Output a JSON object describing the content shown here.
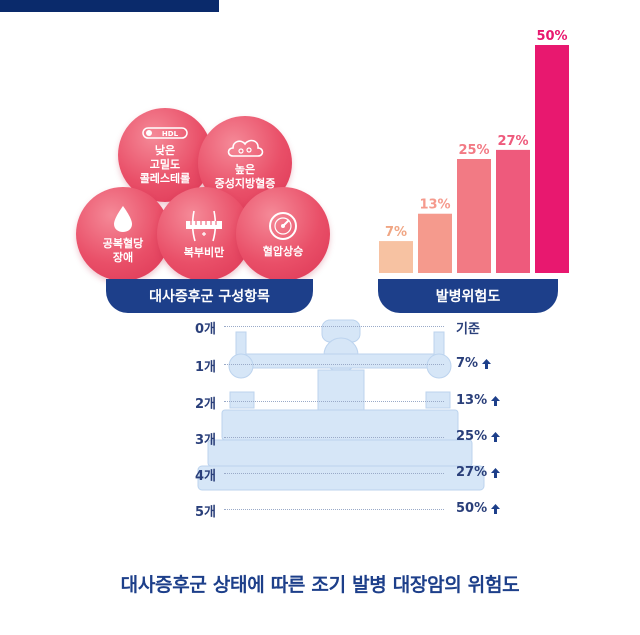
{
  "components": {
    "title": "대사증후군 구성항목",
    "items": [
      {
        "label": "낮은\n고밀도\n콜레스테롤",
        "icon": "thermometer-icon",
        "tag": "HDL"
      },
      {
        "label": "높은\n중성지방혈증",
        "icon": "fat-cloud-icon"
      },
      {
        "label": "공복혈당\n장애",
        "icon": "blood-drop-icon"
      },
      {
        "label": "복부비만",
        "icon": "waist-tape-icon"
      },
      {
        "label": "혈압상승",
        "icon": "pressure-gauge-icon"
      }
    ]
  },
  "risk_panel": {
    "title": "발병위험도"
  },
  "colors": {
    "navy": "#1d3f8a",
    "circle": "#e94f68",
    "bars": [
      "#f7c2a2",
      "#f59a8d",
      "#f27a84",
      "#ee5a7c",
      "#e8186f"
    ]
  },
  "chart_data": {
    "type": "bar",
    "categories": [
      "1개",
      "2개",
      "3개",
      "4개",
      "5개"
    ],
    "values": [
      7,
      13,
      25,
      27,
      50
    ],
    "value_labels": [
      "7%",
      "13%",
      "25%",
      "27%",
      "50%"
    ],
    "ylim": [
      0,
      50
    ],
    "grid": false
  },
  "scale_rows": [
    {
      "count": "0개",
      "risk": "기준",
      "arrow": false
    },
    {
      "count": "1개",
      "risk": "7%",
      "arrow": true
    },
    {
      "count": "2개",
      "risk": "13%",
      "arrow": true
    },
    {
      "count": "3개",
      "risk": "25%",
      "arrow": true
    },
    {
      "count": "4개",
      "risk": "27%",
      "arrow": true
    },
    {
      "count": "5개",
      "risk": "50%",
      "arrow": true
    }
  ],
  "footer": {
    "title": "대사증후군 상태에 따른 조기 발병 대장암의 위험도"
  }
}
